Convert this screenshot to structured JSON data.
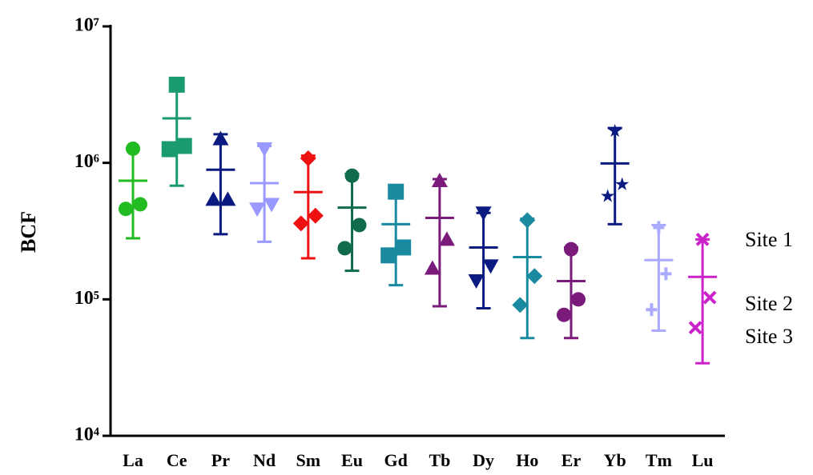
{
  "chart_data": {
    "type": "dot_errorbar",
    "ylabel": "BCF",
    "ylog": true,
    "ylim": [
      10000,
      10000000
    ],
    "yticks": [
      {
        "value": 10000,
        "label": "10⁴"
      },
      {
        "value": 100000,
        "label": "10⁵"
      },
      {
        "value": 1000000,
        "label": "10⁶"
      },
      {
        "value": 10000000,
        "label": "10⁷"
      }
    ],
    "categories": [
      "La",
      "Ce",
      "Pr",
      "Nd",
      "Sm",
      "Eu",
      "Gd",
      "Tb",
      "Dy",
      "Ho",
      "Er",
      "Yb",
      "Tm",
      "Lu"
    ],
    "colors": [
      "#22bb22",
      "#1a9a70",
      "#0a1a80",
      "#9999ff",
      "#ee1111",
      "#0f6b4a",
      "#1a8aa0",
      "#7a1a7a",
      "#0a1a80",
      "#1a8aa0",
      "#7a1a7a",
      "#0a1a80",
      "#aaaaff",
      "#cc22cc"
    ],
    "markers": [
      "circle",
      "square",
      "triangle-up",
      "triangle-down",
      "diamond",
      "circle",
      "square",
      "triangle-up",
      "triangle-down",
      "diamond",
      "circle",
      "star",
      "plus",
      "cross"
    ],
    "points": [
      [
        1270000,
        497000,
        460000
      ],
      [
        3740000,
        1330000,
        1260000
      ],
      [
        1500000,
        540000,
        540000
      ],
      [
        1270000,
        497000,
        460000
      ],
      [
        1080000,
        410000,
        360000
      ],
      [
        805000,
        350000,
        237000
      ],
      [
        615000,
        240000,
        210000
      ],
      [
        740000,
        275000,
        169000
      ],
      [
        430000,
        176000,
        137000
      ],
      [
        380000,
        148000,
        91000
      ],
      [
        233000,
        100000,
        77000
      ],
      [
        1710000,
        695000,
        570000
      ],
      [
        336000,
        154000,
        84000
      ],
      [
        275000,
        103000,
        62000
      ]
    ],
    "mean": [
      740000,
      2120000,
      890000,
      710000,
      610000,
      470000,
      355000,
      395000,
      240000,
      204000,
      136000,
      990000,
      194000,
      146000
    ],
    "error_low": [
      280000,
      680000,
      300000,
      264000,
      200000,
      162000,
      127000,
      89000,
      86000,
      52000,
      52000,
      355000,
      59000,
      34000
    ],
    "error_high": [
      1270000,
      3740000,
      1620000,
      1330000,
      1130000,
      830000,
      615000,
      760000,
      430000,
      390000,
      240000,
      1800000,
      350000,
      275000
    ],
    "annotations": [
      "Site 1",
      "Site 2",
      "Site 3"
    ]
  }
}
